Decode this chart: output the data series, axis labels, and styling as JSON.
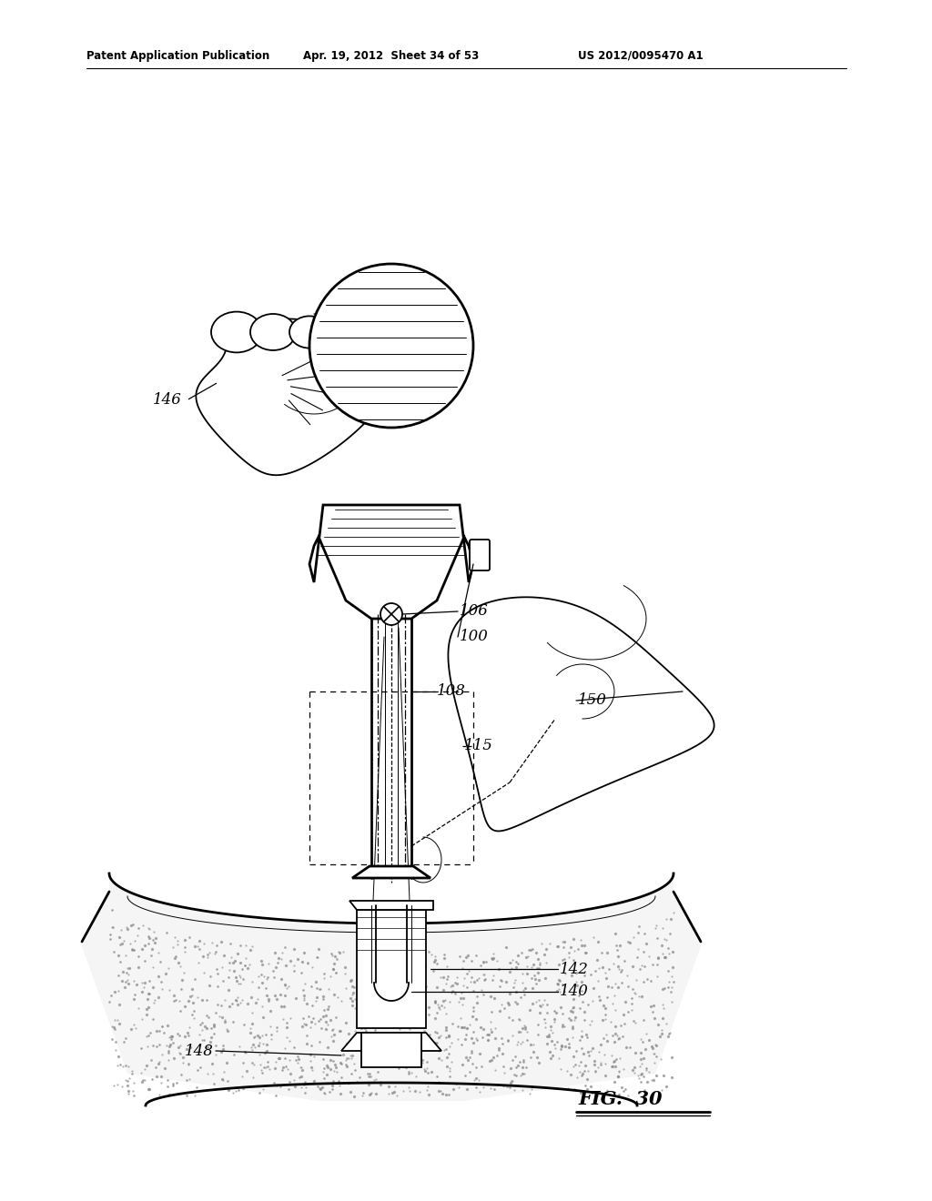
{
  "title_left": "Patent Application Publication",
  "title_center": "Apr. 19, 2012  Sheet 34 of 53",
  "title_right": "US 2012/0095470 A1",
  "fig_label": "FIG.  30",
  "bg_color": "#ffffff",
  "line_color": "#000000"
}
